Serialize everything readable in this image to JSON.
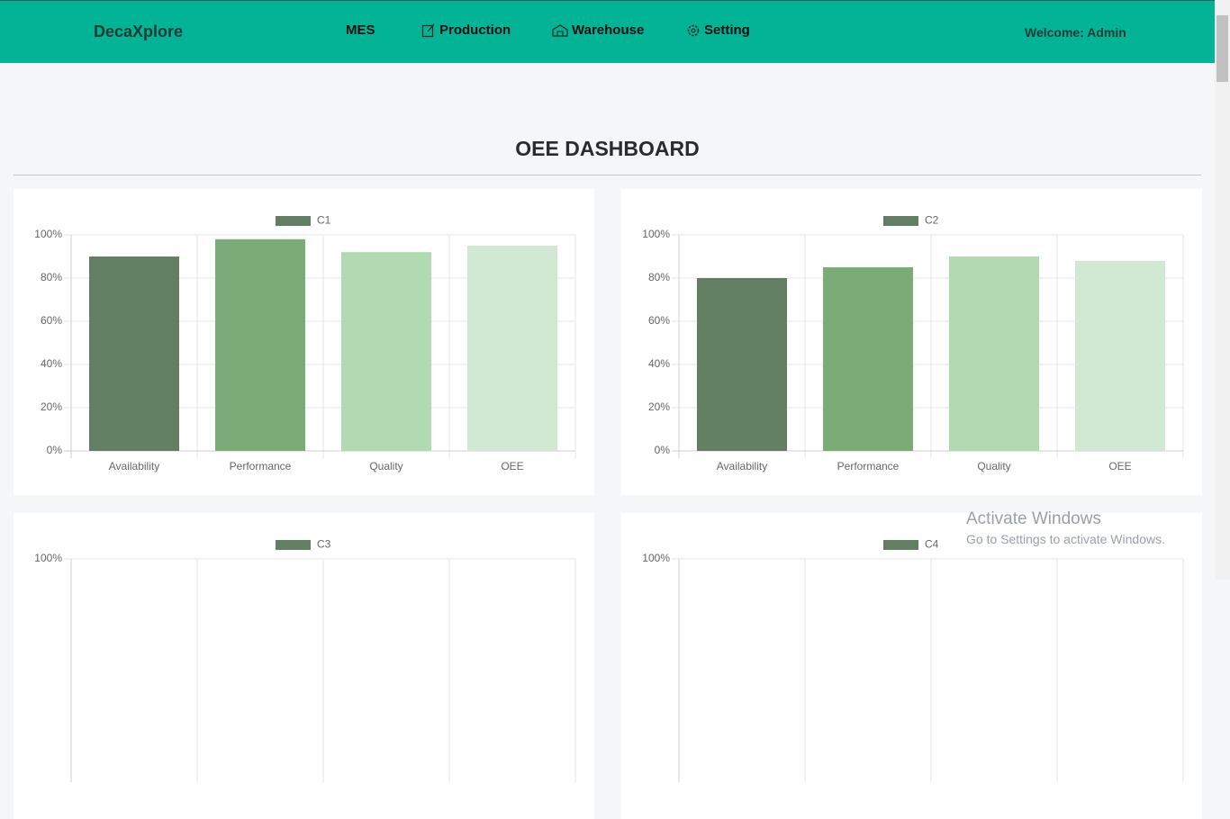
{
  "navbar": {
    "brand": "DecaXplore",
    "links": [
      "MES",
      "Production",
      "Warehouse",
      "Setting"
    ],
    "welcome": "Welcome: Admin"
  },
  "page_title": "OEE DASHBOARD",
  "chart_data": [
    {
      "type": "bar",
      "categories": [
        "Availability",
        "Performance",
        "Quality",
        "OEE"
      ],
      "series": [
        {
          "name": "C1",
          "color": "#637f63",
          "values": [
            90,
            98,
            92,
            95
          ]
        }
      ],
      "bar_colors": [
        "#637f63",
        "#7bac78",
        "#b1dab1",
        "#d1e8d3"
      ],
      "ylim": [
        0,
        100
      ],
      "yticks": [
        {
          "value": 0,
          "label": "0%"
        },
        {
          "value": 20,
          "label": "20%"
        },
        {
          "value": 40,
          "label": "40%"
        },
        {
          "value": 60,
          "label": "60%"
        },
        {
          "value": 80,
          "label": "80%"
        },
        {
          "value": 100,
          "label": "100%"
        }
      ],
      "grid": true
    },
    {
      "type": "bar",
      "categories": [
        "Availability",
        "Performance",
        "Quality",
        "OEE"
      ],
      "series": [
        {
          "name": "C2",
          "color": "#637f63",
          "values": [
            80,
            85,
            90,
            88
          ]
        }
      ],
      "bar_colors": [
        "#637f63",
        "#7bac78",
        "#b1dab1",
        "#d1e8d3"
      ],
      "ylim": [
        0,
        100
      ],
      "yticks": [
        {
          "value": 0,
          "label": "0%"
        },
        {
          "value": 20,
          "label": "20%"
        },
        {
          "value": 40,
          "label": "40%"
        },
        {
          "value": 60,
          "label": "60%"
        },
        {
          "value": 80,
          "label": "80%"
        },
        {
          "value": 100,
          "label": "100%"
        }
      ],
      "grid": true
    },
    {
      "type": "bar",
      "series": [
        {
          "name": "C3",
          "color": "#637f63"
        }
      ],
      "ylim": [
        0,
        100
      ],
      "yticks": [
        {
          "value": 100,
          "label": "100%"
        }
      ],
      "grid": true
    },
    {
      "type": "bar",
      "series": [
        {
          "name": "C4",
          "color": "#637f63"
        }
      ],
      "ylim": [
        0,
        100
      ],
      "yticks": [
        {
          "value": 100,
          "label": "100%"
        }
      ],
      "grid": true
    }
  ],
  "watermark": {
    "title": "Activate Windows",
    "subtitle": "Go to Settings to activate Windows."
  }
}
